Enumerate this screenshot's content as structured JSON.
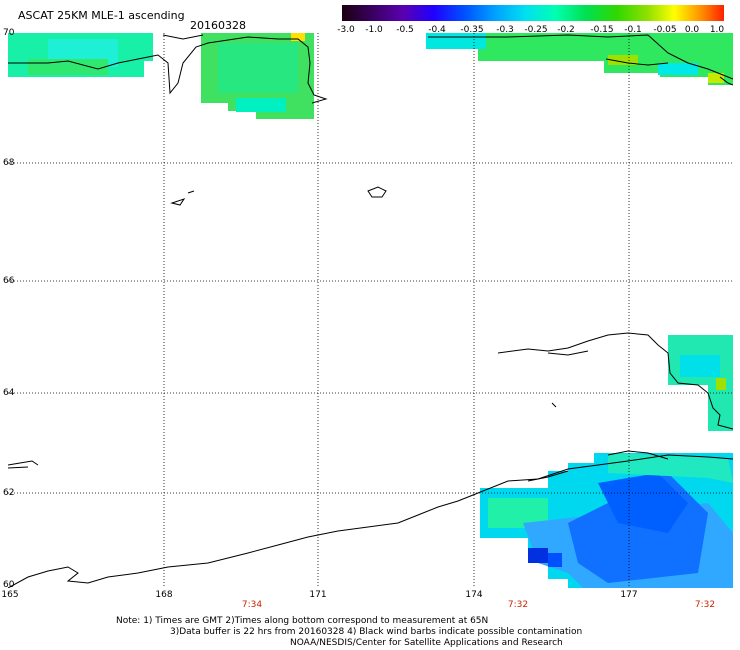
{
  "header": {
    "title": "ASCAT 25KM MLE-1 ascending",
    "date": "20160328"
  },
  "colorbar": {
    "labels": [
      "-3.0",
      "-1.0",
      "-0.5",
      "-0.4",
      "-0.35",
      "-0.3",
      "-0.25",
      "-0.2",
      "-0.15",
      "-0.1",
      "-0.05",
      "0.0",
      "1.0"
    ],
    "colors": [
      "#1a0010",
      "#4b0090",
      "#6a00d0",
      "#1000ff",
      "#0060ff",
      "#00a0ff",
      "#00e8e8",
      "#00ffb0",
      "#00e050",
      "#40e000",
      "#a0e000",
      "#ffff00",
      "#ff9000",
      "#ff2000"
    ]
  },
  "map": {
    "lat_labels": [
      "70",
      "68",
      "66",
      "64",
      "62",
      "60"
    ],
    "lon_labels": [
      "165",
      "168",
      "171",
      "174",
      "177"
    ],
    "time_labels": [
      "7:34",
      "7:32",
      "7:32"
    ]
  },
  "notes": {
    "line1": "Note: 1) Times are GMT 2)Times along bottom correspond to measurement at 65N",
    "line2": "3)Data buffer is 22 hrs from 20160328 4) Black wind barbs indicate possible contamination",
    "line3": "NOAA/NESDIS/Center for Satellite Applications and Research"
  }
}
